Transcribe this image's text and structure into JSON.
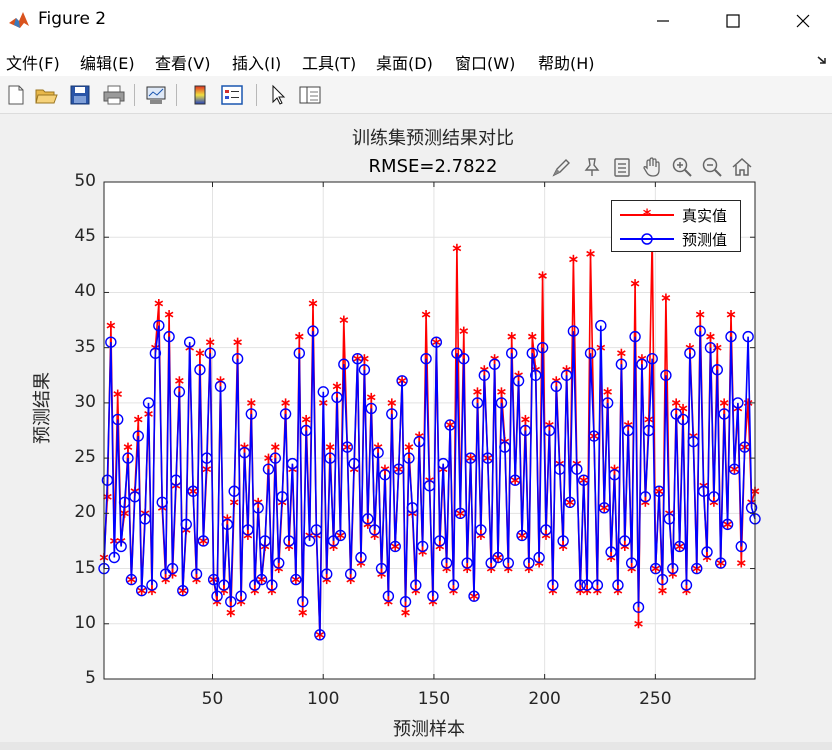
{
  "window": {
    "title": "Figure 2",
    "icon": "matlab-icon",
    "controls": [
      "minimize-icon",
      "maximize-icon",
      "close-icon"
    ]
  },
  "menu": {
    "items": [
      "文件(F)",
      "编辑(E)",
      "查看(V)",
      "插入(I)",
      "工具(T)",
      "桌面(D)",
      "窗口(W)",
      "帮助(H)"
    ],
    "overflow_icon": "arrow-icon"
  },
  "toolbar": {
    "icons": [
      "new-figure-icon",
      "open-icon",
      "save-icon",
      "print-icon",
      "link-plot-icon",
      "colorbar-icon",
      "legend-icon",
      "pointer-icon",
      "property-inspector-icon"
    ]
  },
  "axes_toolbar": {
    "icons": [
      "brush-icon",
      "data-tips-icon",
      "edit-icon",
      "pan-icon",
      "zoom-in-icon",
      "zoom-out-icon",
      "home-icon"
    ]
  },
  "chart_data": {
    "type": "line",
    "title": "训练集预测结果对比",
    "subtitle": "RMSE=2.7822",
    "xlabel": "预测样本",
    "ylabel": "预测结果",
    "xlim": [
      1,
      295
    ],
    "ylim": [
      5,
      50
    ],
    "xticks": [
      50,
      100,
      150,
      200,
      250
    ],
    "yticks": [
      5,
      10,
      15,
      20,
      25,
      30,
      35,
      40,
      45,
      50
    ],
    "grid": true,
    "legend_position": "top-right",
    "series": [
      {
        "name": "真实值",
        "color": "#ff0000",
        "marker": "*",
        "values": [
          16.0,
          21.5,
          37.0,
          17.5,
          30.8,
          17.5,
          20.0,
          26.0,
          14.0,
          22.0,
          28.5,
          13.0,
          20.0,
          29.0,
          13.0,
          35.0,
          39.0,
          20.5,
          14.0,
          38.0,
          14.5,
          22.5,
          32.0,
          13.0,
          18.5,
          35.0,
          22.0,
          14.0,
          34.5,
          17.5,
          24.0,
          35.5,
          14.0,
          12.0,
          32.0,
          13.0,
          19.5,
          11.0,
          21.0,
          35.5,
          12.0,
          26.0,
          18.0,
          30.0,
          13.0,
          21.0,
          14.0,
          17.0,
          25.0,
          13.0,
          26.0,
          15.0,
          21.0,
          30.0,
          17.0,
          24.0,
          14.0,
          36.0,
          11.0,
          28.5,
          18.0,
          39.0,
          18.0,
          9.0,
          30.0,
          14.0,
          26.0,
          17.0,
          31.5,
          18.0,
          37.5,
          26.0,
          14.0,
          24.0,
          34.0,
          15.5,
          34.0,
          19.0,
          30.5,
          18.0,
          26.0,
          14.5,
          24.0,
          12.0,
          30.0,
          17.0,
          24.0,
          32.0,
          11.0,
          26.0,
          20.0,
          13.0,
          27.0,
          16.5,
          38.0,
          23.0,
          12.0,
          35.5,
          17.0,
          24.0,
          15.0,
          28.0,
          13.0,
          44.0,
          20.0,
          36.5,
          15.0,
          25.0,
          12.5,
          31.0,
          18.0,
          33.0,
          25.0,
          15.0,
          34.0,
          16.0,
          31.0,
          26.5,
          15.0,
          36.0,
          23.0,
          32.5,
          18.0,
          28.5,
          15.0,
          36.0,
          33.0,
          15.5,
          41.5,
          18.0,
          28.0,
          13.0,
          32.0,
          24.5,
          17.0,
          33.0,
          21.0,
          43.0,
          24.5,
          13.0,
          23.0,
          13.0,
          43.5,
          27.0,
          13.0,
          35.0,
          20.5,
          31.0,
          16.0,
          24.0,
          13.0,
          34.5,
          17.0,
          28.0,
          15.0,
          40.8,
          10.0,
          34.0,
          21.0,
          28.5,
          45.0,
          15.0,
          22.0,
          13.0,
          39.5,
          20.0,
          14.5,
          30.0,
          17.0,
          29.5,
          13.0,
          35.0,
          27.0,
          15.0,
          38.0,
          22.5,
          16.0,
          36.0,
          21.0,
          35.0,
          15.5,
          30.0,
          19.0,
          38.0,
          24.0,
          29.5,
          15.5,
          26.0,
          30.0,
          21.0,
          22.0
        ]
      },
      {
        "name": "预测值",
        "color": "#0000ff",
        "marker": "o",
        "values": [
          15.0,
          23.0,
          35.5,
          16.0,
          28.5,
          17.0,
          21.0,
          25.0,
          14.0,
          21.5,
          27.0,
          13.0,
          19.5,
          30.0,
          13.5,
          34.5,
          37.0,
          21.0,
          14.5,
          36.0,
          15.0,
          23.0,
          31.0,
          13.0,
          19.0,
          35.5,
          22.0,
          14.5,
          33.0,
          17.5,
          25.0,
          34.5,
          14.0,
          12.5,
          31.5,
          13.5,
          19.0,
          12.0,
          22.0,
          34.0,
          12.5,
          25.5,
          18.5,
          29.0,
          13.5,
          20.5,
          14.0,
          17.5,
          24.0,
          13.5,
          25.0,
          15.5,
          21.5,
          29.0,
          17.5,
          24.5,
          14.0,
          34.5,
          12.0,
          27.5,
          17.5,
          36.5,
          18.5,
          9.0,
          31.0,
          14.5,
          25.0,
          17.5,
          30.5,
          18.0,
          33.5,
          26.0,
          14.5,
          24.5,
          34.0,
          16.0,
          33.0,
          19.5,
          29.5,
          18.5,
          25.5,
          15.0,
          23.5,
          12.5,
          29.0,
          17.0,
          24.0,
          32.0,
          12.0,
          25.0,
          20.5,
          13.5,
          26.5,
          17.0,
          34.0,
          22.5,
          12.5,
          35.5,
          17.5,
          24.5,
          15.5,
          28.0,
          13.5,
          34.5,
          20.0,
          34.0,
          15.5,
          25.0,
          12.5,
          30.0,
          18.5,
          32.5,
          25.0,
          15.5,
          33.5,
          16.0,
          30.0,
          26.0,
          15.5,
          34.5,
          23.0,
          32.0,
          18.0,
          27.5,
          15.5,
          34.5,
          32.5,
          16.0,
          35.0,
          18.5,
          27.5,
          13.5,
          31.5,
          24.0,
          17.5,
          32.5,
          21.0,
          36.5,
          24.0,
          13.5,
          23.0,
          13.5,
          34.5,
          27.0,
          13.5,
          37.0,
          20.5,
          30.0,
          16.5,
          23.5,
          13.5,
          33.5,
          17.5,
          27.5,
          15.5,
          36.0,
          11.5,
          33.5,
          21.5,
          27.5,
          34.0,
          15.0,
          22.0,
          14.0,
          32.5,
          19.5,
          15.0,
          29.0,
          17.0,
          28.5,
          13.5,
          34.5,
          26.5,
          15.0,
          36.5,
          22.0,
          16.5,
          35.0,
          21.5,
          33.0,
          15.5,
          29.0,
          19.0,
          36.0,
          24.0,
          30.0,
          17.0,
          26.0,
          36.0,
          20.5,
          19.5
        ]
      }
    ]
  }
}
